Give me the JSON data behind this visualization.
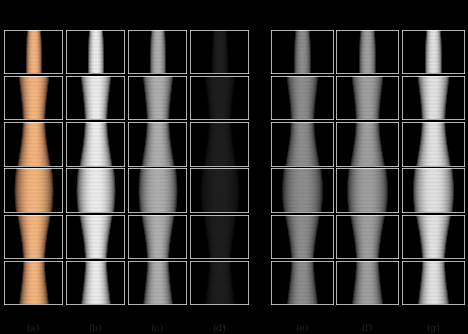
{
  "labels": [
    "(a)",
    "(b)",
    "(c)",
    "(d)",
    "(e)",
    "(f)",
    "(g)"
  ],
  "n_rows": 6,
  "n_cols": 7,
  "fig_width": 4.68,
  "fig_height": 3.34,
  "dpi": 100,
  "label_fontsize": 7,
  "label_color": "#222222",
  "styles": [
    "skin",
    "white",
    "light_gray",
    "near_black",
    "mid_gray",
    "dark_mid_gray",
    "white2"
  ],
  "brightness": [
    0.9,
    0.92,
    0.68,
    0.12,
    0.55,
    0.62,
    0.88
  ],
  "skin_tone": [
    true,
    false,
    false,
    false,
    false,
    false,
    false
  ]
}
